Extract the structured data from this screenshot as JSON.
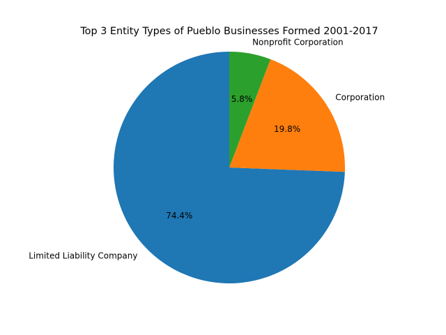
{
  "chart_data": {
    "type": "pie",
    "title": "Top 3 Entity Types of Pueblo Businesses Formed 2001-2017",
    "categories": [
      "Limited Liability Company",
      "Corporation",
      "Nonprofit Corporation"
    ],
    "values": [
      74.4,
      19.8,
      5.8
    ],
    "percent_labels": [
      "74.4%",
      "19.8%",
      "5.8%"
    ],
    "colors": [
      "#1f77b4",
      "#ff7f0e",
      "#2ca02c"
    ],
    "start_angle_deg": 90,
    "direction": "counterclockwise"
  }
}
